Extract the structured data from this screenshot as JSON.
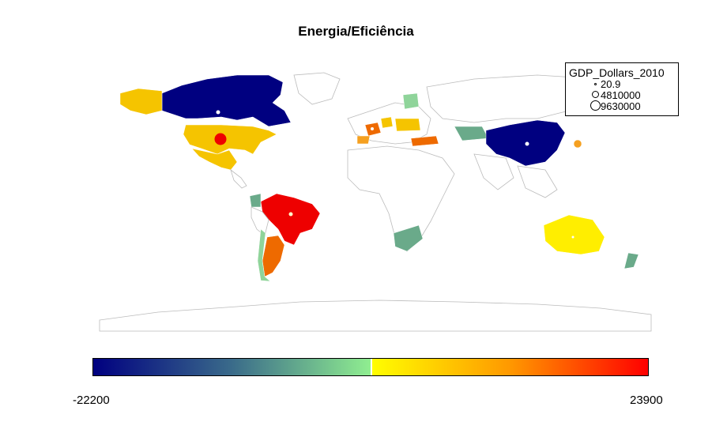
{
  "title": "Energia/Eficiência",
  "legend": {
    "title": "GDP_Dollars_2010",
    "entries": [
      "20.9",
      "4810000",
      "9630000"
    ]
  },
  "colorbar": {
    "min_label": "-22200",
    "max_label": "23900",
    "min": -22200,
    "max": 23900
  },
  "colors": {
    "low": "#000080",
    "mid_low": "#90ee90",
    "mid_high": "#ffff00",
    "high": "#ff0000",
    "land_outline": "#bbbbbb"
  }
}
